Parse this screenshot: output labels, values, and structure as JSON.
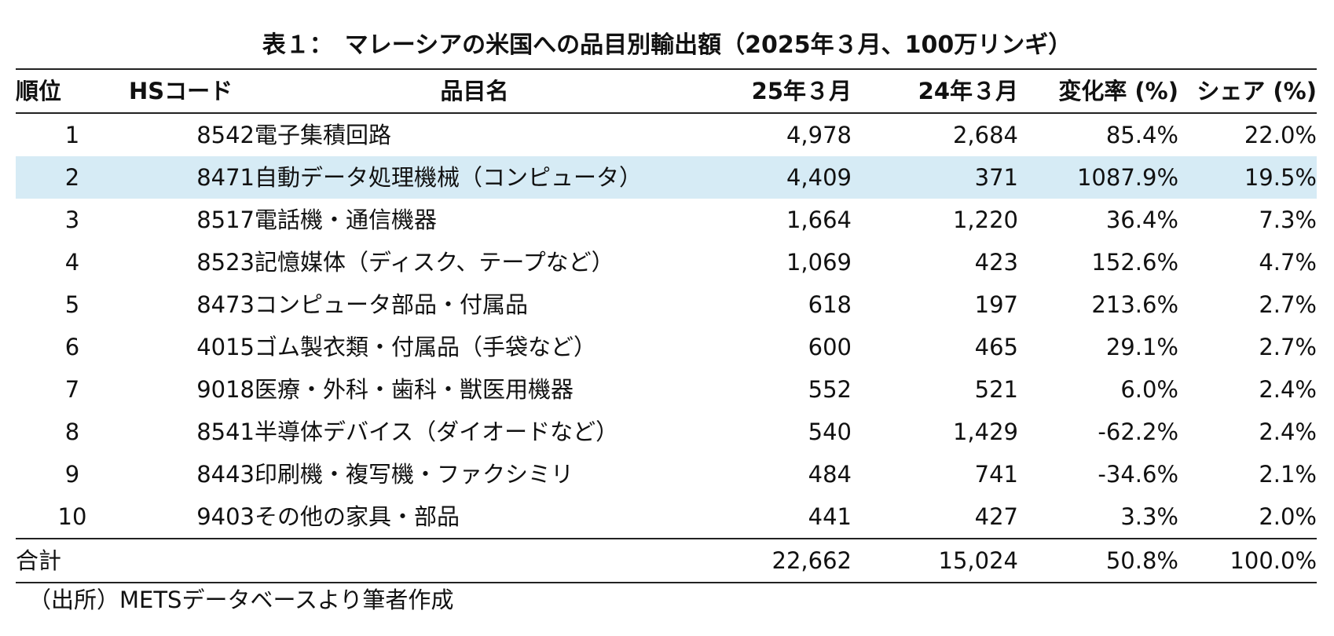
{
  "title": "表１：　マレーシアの米国への品目別輸出額（2025年３月、100万リンギ）",
  "headers": {
    "rank": "順位",
    "hs": "HSコード",
    "name": "品目名",
    "mar25": "25年３月",
    "mar24": "24年３月",
    "change": "変化率 (%)",
    "share": "シェア (%)"
  },
  "rows": [
    {
      "rank": "1",
      "hs": "8542",
      "name": "電子集積回路",
      "mar25": "4,978",
      "mar24": "2,684",
      "change": "85.4%",
      "share": "22.0%"
    },
    {
      "rank": "2",
      "hs": "8471",
      "name": "自動データ処理機械（コンピュータ）",
      "mar25": "4,409",
      "mar24": "371",
      "change": "1087.9%",
      "share": "19.5%"
    },
    {
      "rank": "3",
      "hs": "8517",
      "name": "電話機・通信機器",
      "mar25": "1,664",
      "mar24": "1,220",
      "change": "36.4%",
      "share": "7.3%"
    },
    {
      "rank": "4",
      "hs": "8523",
      "name": "記憶媒体（ディスク、テープなど）",
      "mar25": "1,069",
      "mar24": "423",
      "change": "152.6%",
      "share": "4.7%"
    },
    {
      "rank": "5",
      "hs": "8473",
      "name": "コンピュータ部品・付属品",
      "mar25": "618",
      "mar24": "197",
      "change": "213.6%",
      "share": "2.7%"
    },
    {
      "rank": "6",
      "hs": "4015",
      "name": "ゴム製衣類・付属品（手袋など）",
      "mar25": "600",
      "mar24": "465",
      "change": "29.1%",
      "share": "2.7%"
    },
    {
      "rank": "7",
      "hs": "9018",
      "name": "医療・外科・歯科・獣医用機器",
      "mar25": "552",
      "mar24": "521",
      "change": "6.0%",
      "share": "2.4%"
    },
    {
      "rank": "8",
      "hs": "8541",
      "name": "半導体デバイス（ダイオードなど）",
      "mar25": "540",
      "mar24": "1,429",
      "change": "-62.2%",
      "share": "2.4%"
    },
    {
      "rank": "9",
      "hs": "8443",
      "name": "印刷機・複写機・ファクシミリ",
      "mar25": "484",
      "mar24": "741",
      "change": "-34.6%",
      "share": "2.1%"
    },
    {
      "rank": "10",
      "hs": "9403",
      "name": "その他の家具・部品",
      "mar25": "441",
      "mar24": "427",
      "change": "3.3%",
      "share": "2.0%"
    }
  ],
  "total": {
    "label": "合計",
    "mar25": "22,662",
    "mar24": "15,024",
    "change": "50.8%",
    "share": "100.0%"
  },
  "source": "（出所）METSデータベースより筆者作成",
  "colors": {
    "highlight_row": "#d6ebf5"
  },
  "highlighted_row_rank": "2"
}
